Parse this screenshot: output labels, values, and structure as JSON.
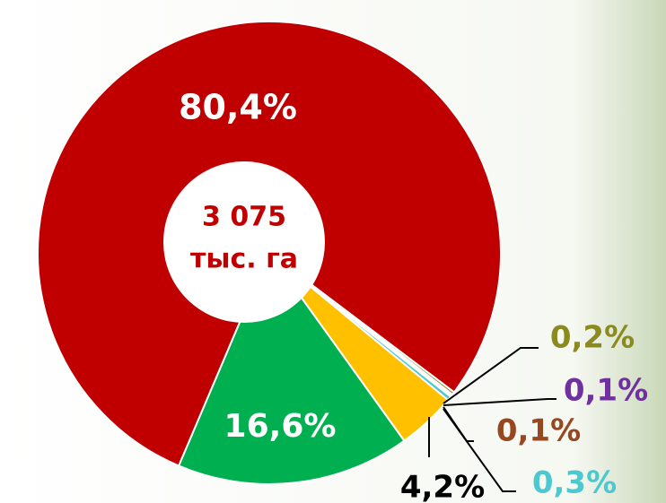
{
  "chart_data": {
    "type": "pie",
    "center_text": [
      "3 075",
      "тыс. га"
    ],
    "categories": [
      null,
      null,
      null,
      null,
      null,
      null,
      null
    ],
    "values": [
      80.4,
      0.2,
      0.1,
      0.1,
      0.3,
      4.2,
      16.6
    ],
    "value_labels": [
      "80,4%",
      "0,2%",
      "0,1%",
      "0,1%",
      "0,3%",
      "4,2%",
      "16,6%"
    ],
    "colors": [
      "#c00000",
      "#8a8a1e",
      "#7030a0",
      "#984820",
      "#4bc8d0",
      "#ffc000",
      "#00b050"
    ],
    "label_colors": [
      "#ffffff",
      "#8a8a1e",
      "#7030a0",
      "#984820",
      "#4bc8d0",
      "#000000",
      "#ffffff"
    ]
  }
}
